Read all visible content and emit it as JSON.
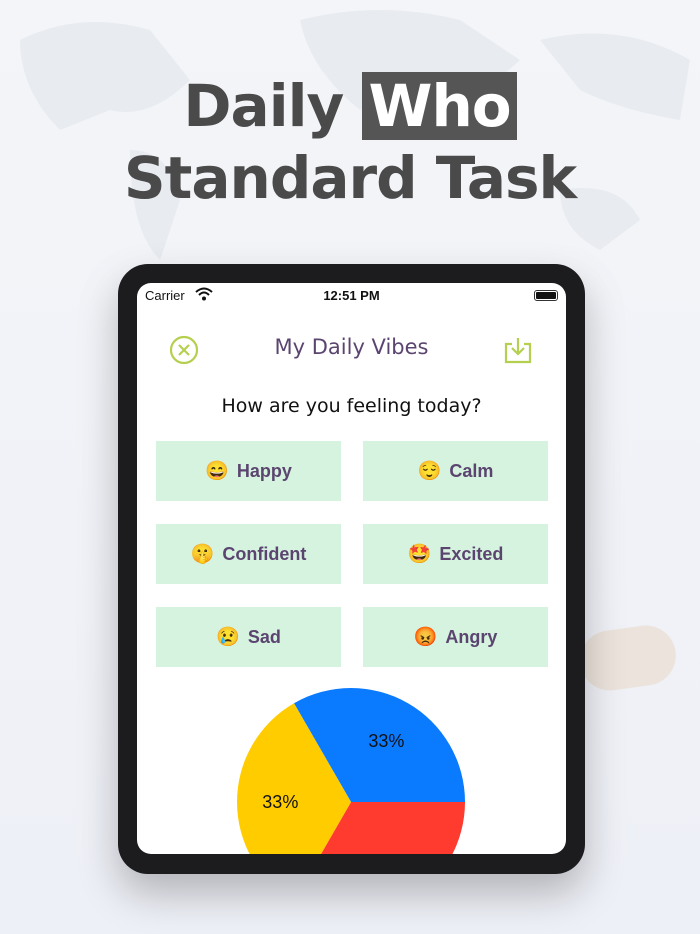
{
  "headline": {
    "line1_plain": "Daily",
    "line1_highlight": "Who",
    "line2": "Standard Task"
  },
  "status_bar": {
    "carrier": "Carrier",
    "time": "12:51 PM"
  },
  "header": {
    "title": "My Daily Vibes",
    "close_icon": "close-circle-icon",
    "download_icon": "download-tray-icon",
    "accent": "#b5cf4f"
  },
  "question": "How are you feeling today?",
  "moods": [
    {
      "emoji": "😄",
      "label": "Happy"
    },
    {
      "emoji": "😌",
      "label": "Calm"
    },
    {
      "emoji": "🤫",
      "label": "Confident"
    },
    {
      "emoji": "🤩",
      "label": "Excited"
    },
    {
      "emoji": "😢",
      "label": "Sad"
    },
    {
      "emoji": "😡",
      "label": "Angry"
    }
  ],
  "chart_data": {
    "type": "pie",
    "slices": [
      {
        "value": 33,
        "label": "33%",
        "color": "#0a7aff"
      },
      {
        "value": 33,
        "label": "",
        "color": "#ff3b30"
      },
      {
        "value": 33,
        "label": "33%",
        "color": "#ffcc00"
      }
    ]
  }
}
